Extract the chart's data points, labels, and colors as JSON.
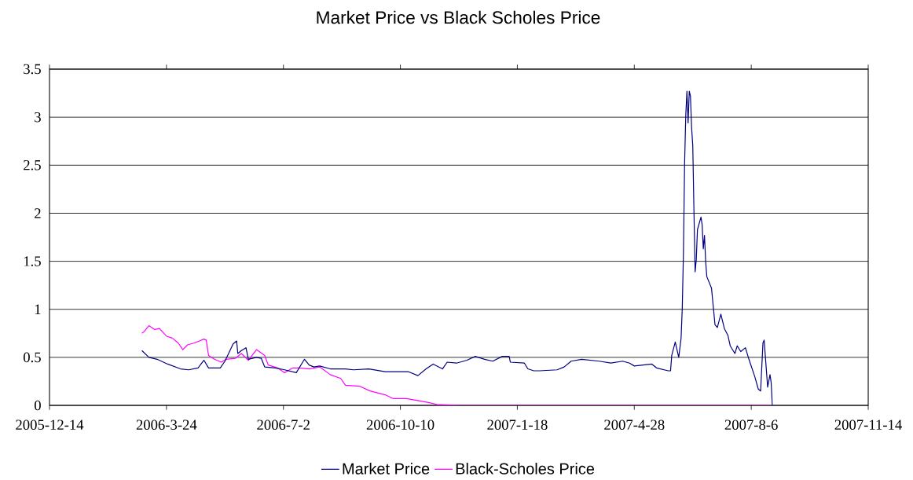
{
  "chart_data": {
    "type": "line",
    "title": "Market Price vs Black Scholes Price",
    "xlim": [
      "2005-12-14",
      "2007-11-14"
    ],
    "xticks": [
      {
        "value": "2005-12-14",
        "label": "2005-12-14"
      },
      {
        "value": "2006-03-24",
        "label": "2006-3-24"
      },
      {
        "value": "2006-07-02",
        "label": "2006-7-2"
      },
      {
        "value": "2006-10-10",
        "label": "2006-10-10"
      },
      {
        "value": "2007-01-18",
        "label": "2007-1-18"
      },
      {
        "value": "2007-04-28",
        "label": "2007-4-28"
      },
      {
        "value": "2007-08-06",
        "label": "2007-8-6"
      },
      {
        "value": "2007-11-14",
        "label": "2007-11-14"
      }
    ],
    "ylim": [
      0,
      3.5
    ],
    "yticks": [
      0,
      0.5,
      1,
      1.5,
      2,
      2.5,
      3,
      3.5
    ],
    "grid": "y",
    "legend": "bottom",
    "marker": "none",
    "line_style": "solid",
    "series": [
      {
        "name": "Market Price",
        "color": "#000080",
        "x": [
          "2006-03-03",
          "2006-03-09",
          "2006-03-16",
          "2006-03-25",
          "2006-04-05",
          "2006-04-12",
          "2006-04-20",
          "2006-04-25",
          "2006-04-29",
          "2006-05-09",
          "2006-05-13",
          "2006-05-20",
          "2006-05-23",
          "2006-05-24",
          "2006-05-27",
          "2006-05-31",
          "2006-06-02",
          "2006-06-09",
          "2006-06-13",
          "2006-06-16",
          "2006-06-25",
          "2006-07-03",
          "2006-07-13",
          "2006-07-20",
          "2006-07-24",
          "2006-07-28",
          "2006-08-02",
          "2006-08-11",
          "2006-08-24",
          "2006-08-31",
          "2006-09-13",
          "2006-09-27",
          "2006-10-17",
          "2006-10-25",
          "2006-11-01",
          "2006-11-07",
          "2006-11-15",
          "2006-11-19",
          "2006-11-27",
          "2006-12-06",
          "2006-12-13",
          "2006-12-21",
          "2006-12-28",
          "2007-01-05",
          "2007-01-11",
          "2007-01-12",
          "2007-01-24",
          "2007-01-27",
          "2007-02-01",
          "2007-02-06",
          "2007-02-21",
          "2007-02-27",
          "2007-03-05",
          "2007-03-14",
          "2007-03-29",
          "2007-04-08",
          "2007-04-18",
          "2007-04-24",
          "2007-04-28",
          "2007-05-13",
          "2007-05-17",
          "2007-05-27",
          "2007-05-29",
          "2007-05-30",
          "2007-06-02",
          "2007-06-05",
          "2007-06-07",
          "2007-06-08",
          "2007-06-09",
          "2007-06-10",
          "2007-06-11",
          "2007-06-12",
          "2007-06-13",
          "2007-06-14",
          "2007-06-15",
          "2007-06-16",
          "2007-06-17",
          "2007-06-18",
          "2007-06-19",
          "2007-06-20",
          "2007-06-21",
          "2007-06-24",
          "2007-06-25",
          "2007-06-26",
          "2007-06-27",
          "2007-06-28",
          "2007-06-29",
          "2007-07-03",
          "2007-07-06",
          "2007-07-08",
          "2007-07-11",
          "2007-07-14",
          "2007-07-17",
          "2007-07-19",
          "2007-07-23",
          "2007-07-25",
          "2007-07-28",
          "2007-08-01",
          "2007-08-04",
          "2007-08-09",
          "2007-08-12",
          "2007-08-14",
          "2007-08-16",
          "2007-08-17",
          "2007-08-20",
          "2007-08-22",
          "2007-08-23",
          "2007-08-24"
        ],
        "values": [
          0.57,
          0.5,
          0.48,
          0.43,
          0.38,
          0.37,
          0.39,
          0.47,
          0.39,
          0.39,
          0.46,
          0.64,
          0.67,
          0.54,
          0.57,
          0.6,
          0.48,
          0.5,
          0.49,
          0.4,
          0.39,
          0.37,
          0.34,
          0.48,
          0.42,
          0.4,
          0.41,
          0.38,
          0.38,
          0.37,
          0.38,
          0.35,
          0.35,
          0.31,
          0.38,
          0.43,
          0.38,
          0.45,
          0.44,
          0.47,
          0.51,
          0.48,
          0.46,
          0.51,
          0.51,
          0.45,
          0.44,
          0.38,
          0.36,
          0.36,
          0.37,
          0.4,
          0.46,
          0.48,
          0.46,
          0.44,
          0.46,
          0.44,
          0.41,
          0.43,
          0.39,
          0.36,
          0.36,
          0.52,
          0.66,
          0.5,
          0.7,
          1.01,
          1.58,
          2.51,
          3.02,
          3.27,
          2.94,
          3.27,
          3.22,
          2.89,
          2.7,
          2.02,
          1.39,
          1.52,
          1.83,
          1.96,
          1.88,
          1.63,
          1.77,
          1.5,
          1.34,
          1.22,
          0.84,
          0.81,
          0.95,
          0.8,
          0.73,
          0.62,
          0.54,
          0.62,
          0.56,
          0.6,
          0.48,
          0.3,
          0.17,
          0.15,
          0.65,
          0.68,
          0.19,
          0.32,
          0.24,
          0
        ]
      },
      {
        "name": "Black-Scholes Price",
        "color": "#ff00ff",
        "x": [
          "2006-03-03",
          "2006-03-05",
          "2006-03-09",
          "2006-03-14",
          "2006-03-18",
          "2006-03-24",
          "2006-03-29",
          "2006-04-03",
          "2006-04-07",
          "2006-04-11",
          "2006-04-17",
          "2006-04-25",
          "2006-04-27",
          "2006-04-29",
          "2006-05-04",
          "2006-05-10",
          "2006-05-14",
          "2006-05-22",
          "2006-05-27",
          "2006-06-02",
          "2006-06-09",
          "2006-06-16",
          "2006-06-19",
          "2006-06-27",
          "2006-07-03",
          "2006-07-10",
          "2006-07-16",
          "2006-07-24",
          "2006-08-02",
          "2006-08-11",
          "2006-08-20",
          "2006-08-24",
          "2006-09-05",
          "2006-09-14",
          "2006-09-27",
          "2006-10-04",
          "2006-10-15",
          "2006-10-25",
          "2006-11-03",
          "2006-11-10",
          "2006-11-30",
          "2007-08-24"
        ],
        "values": [
          0.75,
          0.77,
          0.83,
          0.79,
          0.8,
          0.72,
          0.7,
          0.65,
          0.58,
          0.63,
          0.65,
          0.69,
          0.68,
          0.52,
          0.48,
          0.45,
          0.48,
          0.49,
          0.54,
          0.47,
          0.58,
          0.52,
          0.42,
          0.39,
          0.34,
          0.39,
          0.39,
          0.38,
          0.4,
          0.32,
          0.28,
          0.21,
          0.2,
          0.15,
          0.11,
          0.07,
          0.07,
          0.05,
          0.03,
          0.01,
          0,
          0
        ]
      }
    ]
  }
}
